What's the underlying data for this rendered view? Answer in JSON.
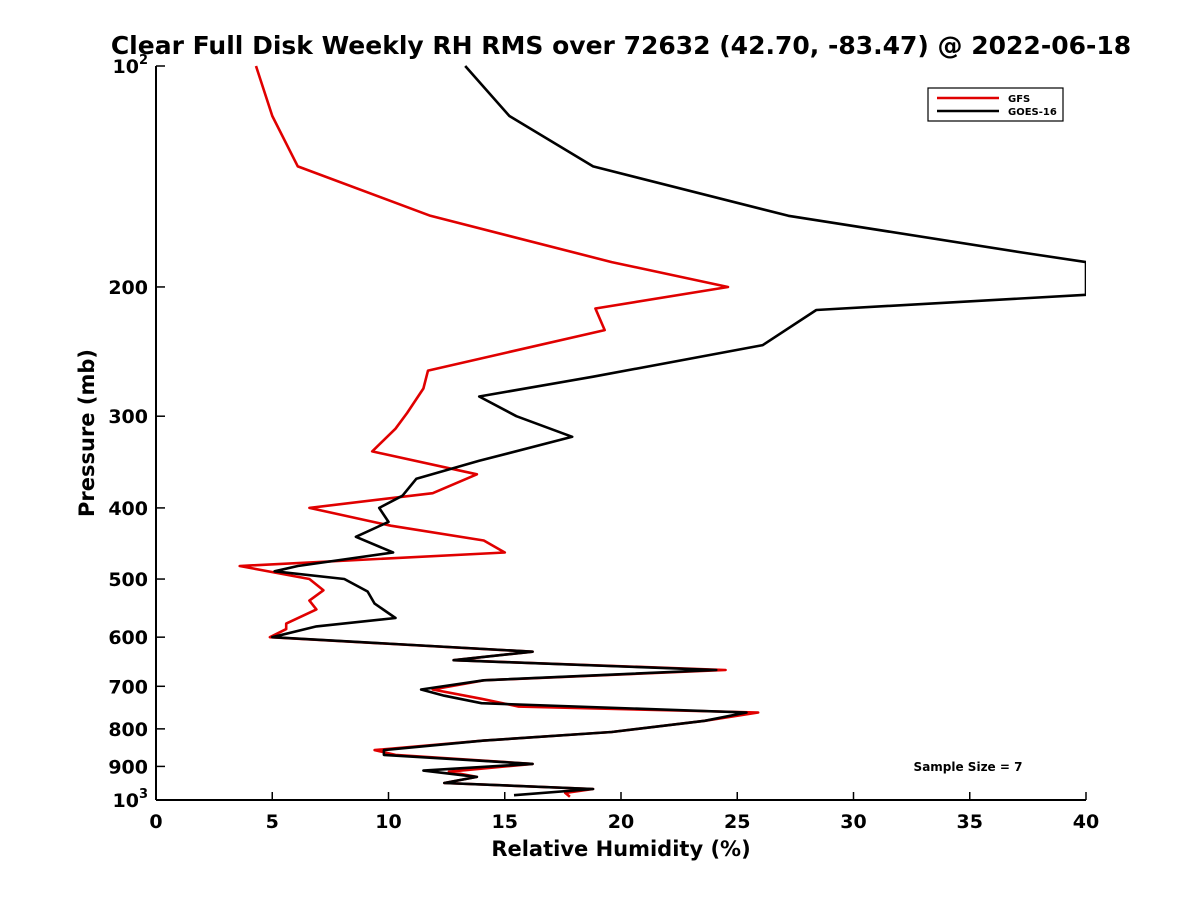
{
  "chart_data": {
    "type": "line",
    "title": "Clear Full Disk Weekly RH RMS over 72632 (42.70, -83.47) @ 2022-06-18",
    "xlabel": "Relative Humidity (%)",
    "ylabel": "Pressure (mb)",
    "xlim": [
      0,
      40
    ],
    "ylim": [
      100,
      1000
    ],
    "y_scale": "log",
    "y_reversed": true,
    "grid": false,
    "legend_position": "top-right",
    "x_ticks": [
      0,
      5,
      10,
      15,
      20,
      25,
      30,
      35,
      40
    ],
    "x_tick_labels": [
      "0",
      "5",
      "10",
      "15",
      "20",
      "25",
      "30",
      "35",
      "40"
    ],
    "y_ticks": [
      100,
      200,
      300,
      400,
      500,
      600,
      700,
      800,
      900,
      1000
    ],
    "y_tick_labels": [
      {
        "base": "10",
        "sup": "2"
      },
      {
        "base": "200",
        "sup": ""
      },
      {
        "base": "300",
        "sup": ""
      },
      {
        "base": "400",
        "sup": ""
      },
      {
        "base": "500",
        "sup": ""
      },
      {
        "base": "600",
        "sup": ""
      },
      {
        "base": "700",
        "sup": ""
      },
      {
        "base": "800",
        "sup": ""
      },
      {
        "base": "900",
        "sup": ""
      },
      {
        "base": "10",
        "sup": "3"
      }
    ],
    "annotation": "Sample Size = 7",
    "series": [
      {
        "name": "GFS",
        "color": "#e00000",
        "points": [
          [
            4.3,
            100
          ],
          [
            5.0,
            117
          ],
          [
            6.1,
            137
          ],
          [
            11.8,
            160
          ],
          [
            19.6,
            185
          ],
          [
            24.6,
            200
          ],
          [
            18.9,
            214
          ],
          [
            19.3,
            229
          ],
          [
            11.7,
            260
          ],
          [
            11.5,
            275
          ],
          [
            10.8,
            297
          ],
          [
            10.3,
            312
          ],
          [
            9.3,
            335
          ],
          [
            13.8,
            360
          ],
          [
            11.9,
            382
          ],
          [
            6.6,
            400
          ],
          [
            10.1,
            423
          ],
          [
            14.1,
            443
          ],
          [
            15.0,
            460
          ],
          [
            3.6,
            480
          ],
          [
            6.6,
            500
          ],
          [
            7.2,
            518
          ],
          [
            6.6,
            535
          ],
          [
            6.9,
            550
          ],
          [
            5.6,
            575
          ],
          [
            5.6,
            585
          ],
          [
            4.9,
            600
          ],
          [
            16.2,
            628
          ],
          [
            12.8,
            645
          ],
          [
            24.5,
            665
          ],
          [
            14.1,
            687
          ],
          [
            11.9,
            707
          ],
          [
            14.0,
            728
          ],
          [
            15.6,
            746
          ],
          [
            25.9,
            760
          ],
          [
            23.6,
            780
          ],
          [
            19.6,
            808
          ],
          [
            14.1,
            830
          ],
          [
            9.4,
            855
          ],
          [
            10.3,
            868
          ],
          [
            16.2,
            893
          ],
          [
            12.6,
            915
          ],
          [
            13.8,
            930
          ],
          [
            12.4,
            948
          ],
          [
            18.8,
            966
          ],
          [
            17.6,
            978
          ],
          [
            17.8,
            990
          ]
        ]
      },
      {
        "name": "GOES-16",
        "color": "#000000",
        "points": [
          [
            13.3,
            100
          ],
          [
            15.2,
            117
          ],
          [
            18.8,
            137
          ],
          [
            27.2,
            160
          ],
          [
            37.5,
            180
          ],
          [
            40.0,
            185
          ],
          [
            40.0,
            205
          ],
          [
            28.4,
            215
          ],
          [
            26.1,
            240
          ],
          [
            18.8,
            265
          ],
          [
            13.9,
            282
          ],
          [
            15.5,
            300
          ],
          [
            17.9,
            320
          ],
          [
            13.9,
            345
          ],
          [
            11.2,
            365
          ],
          [
            10.6,
            385
          ],
          [
            9.6,
            400
          ],
          [
            10.0,
            418
          ],
          [
            8.6,
            438
          ],
          [
            10.2,
            460
          ],
          [
            6.1,
            480
          ],
          [
            5.1,
            488
          ],
          [
            8.1,
            500
          ],
          [
            9.1,
            520
          ],
          [
            9.4,
            540
          ],
          [
            10.3,
            565
          ],
          [
            6.9,
            580
          ],
          [
            5.0,
            600
          ],
          [
            16.2,
            628
          ],
          [
            12.8,
            645
          ],
          [
            24.1,
            665
          ],
          [
            14.1,
            687
          ],
          [
            11.4,
            707
          ],
          [
            12.4,
            721
          ],
          [
            14.0,
            738
          ],
          [
            25.4,
            760
          ],
          [
            23.6,
            780
          ],
          [
            19.6,
            808
          ],
          [
            14.1,
            830
          ],
          [
            9.8,
            855
          ],
          [
            9.8,
            868
          ],
          [
            16.2,
            893
          ],
          [
            11.5,
            912
          ],
          [
            13.8,
            930
          ],
          [
            12.4,
            948
          ],
          [
            18.8,
            966
          ],
          [
            15.4,
            985
          ]
        ]
      }
    ]
  }
}
